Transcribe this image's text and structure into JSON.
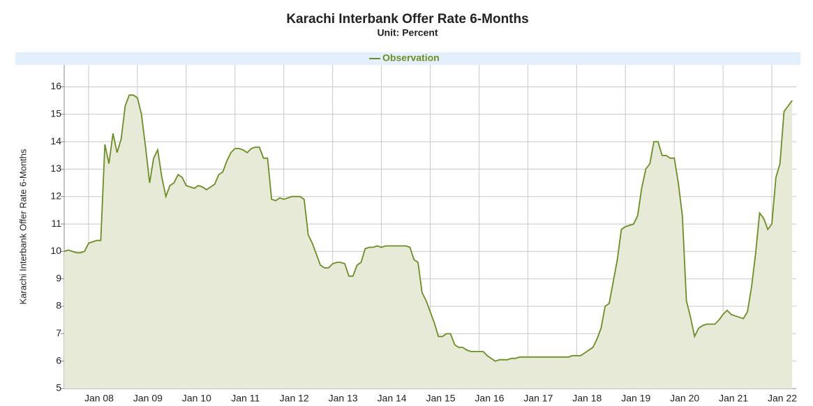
{
  "chart_data": {
    "type": "area",
    "title": "Karachi Interbank Offer Rate 6-Months",
    "subtitle": "Unit: Percent",
    "y_label": "Karachi Interbank Offer Rate 6-Months",
    "legend": "top",
    "grid": true,
    "ylim": [
      5,
      16.8
    ],
    "yticks": [
      5,
      6,
      7,
      8,
      9,
      10,
      11,
      12,
      13,
      14,
      15,
      16
    ],
    "xlim": [
      "2007-07",
      "2022-07"
    ],
    "xticks": [
      {
        "value": "2008-01",
        "label": "Jan 08"
      },
      {
        "value": "2009-01",
        "label": "Jan 09"
      },
      {
        "value": "2010-01",
        "label": "Jan 10"
      },
      {
        "value": "2011-01",
        "label": "Jan 11"
      },
      {
        "value": "2012-01",
        "label": "Jan 12"
      },
      {
        "value": "2013-01",
        "label": "Jan 13"
      },
      {
        "value": "2014-01",
        "label": "Jan 14"
      },
      {
        "value": "2015-01",
        "label": "Jan 15"
      },
      {
        "value": "2016-01",
        "label": "Jan 16"
      },
      {
        "value": "2017-01",
        "label": "Jan 17"
      },
      {
        "value": "2018-01",
        "label": "Jan 18"
      },
      {
        "value": "2019-01",
        "label": "Jan 19"
      },
      {
        "value": "2020-01",
        "label": "Jan 20"
      },
      {
        "value": "2021-01",
        "label": "Jan 21"
      },
      {
        "value": "2022-01",
        "label": "Jan 22"
      }
    ],
    "x": [
      "2007-07",
      "2007-08",
      "2007-09",
      "2007-10",
      "2007-11",
      "2007-12",
      "2008-01",
      "2008-02",
      "2008-03",
      "2008-04",
      "2008-05",
      "2008-06",
      "2008-07",
      "2008-08",
      "2008-09",
      "2008-10",
      "2008-11",
      "2008-12",
      "2009-01",
      "2009-02",
      "2009-03",
      "2009-04",
      "2009-05",
      "2009-06",
      "2009-07",
      "2009-08",
      "2009-09",
      "2009-10",
      "2009-11",
      "2009-12",
      "2010-01",
      "2010-02",
      "2010-03",
      "2010-04",
      "2010-05",
      "2010-06",
      "2010-07",
      "2010-08",
      "2010-09",
      "2010-10",
      "2010-11",
      "2010-12",
      "2011-01",
      "2011-02",
      "2011-03",
      "2011-04",
      "2011-05",
      "2011-06",
      "2011-07",
      "2011-08",
      "2011-09",
      "2011-10",
      "2011-11",
      "2011-12",
      "2012-01",
      "2012-02",
      "2012-03",
      "2012-04",
      "2012-05",
      "2012-06",
      "2012-07",
      "2012-08",
      "2012-09",
      "2012-10",
      "2012-11",
      "2012-12",
      "2013-01",
      "2013-02",
      "2013-03",
      "2013-04",
      "2013-05",
      "2013-06",
      "2013-07",
      "2013-08",
      "2013-09",
      "2013-10",
      "2013-11",
      "2013-12",
      "2014-01",
      "2014-02",
      "2014-03",
      "2014-04",
      "2014-05",
      "2014-06",
      "2014-07",
      "2014-08",
      "2014-09",
      "2014-10",
      "2014-11",
      "2014-12",
      "2015-01",
      "2015-02",
      "2015-03",
      "2015-04",
      "2015-05",
      "2015-06",
      "2015-07",
      "2015-08",
      "2015-09",
      "2015-10",
      "2015-11",
      "2015-12",
      "2016-01",
      "2016-02",
      "2016-03",
      "2016-04",
      "2016-05",
      "2016-06",
      "2016-07",
      "2016-08",
      "2016-09",
      "2016-10",
      "2016-11",
      "2016-12",
      "2017-01",
      "2017-02",
      "2017-03",
      "2017-04",
      "2017-05",
      "2017-06",
      "2017-07",
      "2017-08",
      "2017-09",
      "2017-10",
      "2017-11",
      "2017-12",
      "2018-01",
      "2018-02",
      "2018-03",
      "2018-04",
      "2018-05",
      "2018-06",
      "2018-07",
      "2018-08",
      "2018-09",
      "2018-10",
      "2018-11",
      "2018-12",
      "2019-01",
      "2019-02",
      "2019-03",
      "2019-04",
      "2019-05",
      "2019-06",
      "2019-07",
      "2019-08",
      "2019-09",
      "2019-10",
      "2019-11",
      "2019-12",
      "2020-01",
      "2020-02",
      "2020-03",
      "2020-04",
      "2020-05",
      "2020-06",
      "2020-07",
      "2020-08",
      "2020-09",
      "2020-10",
      "2020-11",
      "2020-12",
      "2021-01",
      "2021-02",
      "2021-03",
      "2021-04",
      "2021-05",
      "2021-06",
      "2021-07",
      "2021-08",
      "2021-09",
      "2021-10",
      "2021-11",
      "2021-12",
      "2022-01",
      "2022-02",
      "2022-03",
      "2022-04",
      "2022-05",
      "2022-06"
    ],
    "series": [
      {
        "name": "Observation",
        "color": "#6b8e23",
        "fill": "#e8ead8",
        "values": [
          10.0,
          10.05,
          10.0,
          9.95,
          9.95,
          10.0,
          10.3,
          10.35,
          10.4,
          10.4,
          13.9,
          13.2,
          14.3,
          13.6,
          14.1,
          15.3,
          15.7,
          15.7,
          15.6,
          15.0,
          13.8,
          12.5,
          13.4,
          13.7,
          12.7,
          12.0,
          12.4,
          12.5,
          12.8,
          12.7,
          12.4,
          12.35,
          12.3,
          12.4,
          12.35,
          12.25,
          12.35,
          12.45,
          12.8,
          12.9,
          13.3,
          13.6,
          13.75,
          13.75,
          13.7,
          13.6,
          13.75,
          13.8,
          13.8,
          13.4,
          13.4,
          11.9,
          11.85,
          11.95,
          11.9,
          11.95,
          12.0,
          12.0,
          12.0,
          11.9,
          10.6,
          10.3,
          9.9,
          9.5,
          9.4,
          9.4,
          9.55,
          9.6,
          9.6,
          9.55,
          9.1,
          9.1,
          9.5,
          9.6,
          10.1,
          10.15,
          10.15,
          10.2,
          10.15,
          10.2,
          10.2,
          10.2,
          10.2,
          10.2,
          10.2,
          10.15,
          9.7,
          9.6,
          8.5,
          8.2,
          7.8,
          7.4,
          6.9,
          6.9,
          7.0,
          7.0,
          6.6,
          6.5,
          6.5,
          6.4,
          6.35,
          6.35,
          6.35,
          6.35,
          6.2,
          6.1,
          6.0,
          6.05,
          6.05,
          6.05,
          6.1,
          6.1,
          6.15,
          6.15,
          6.15,
          6.15,
          6.15,
          6.15,
          6.15,
          6.15,
          6.15,
          6.15,
          6.15,
          6.15,
          6.15,
          6.2,
          6.2,
          6.2,
          6.3,
          6.4,
          6.5,
          6.8,
          7.2,
          8.0,
          8.1,
          8.9,
          9.7,
          10.8,
          10.9,
          10.95,
          11.0,
          11.3,
          12.3,
          13.0,
          13.2,
          14.0,
          14.0,
          13.5,
          13.5,
          13.4,
          13.4,
          12.5,
          11.3,
          8.2,
          7.6,
          6.9,
          7.2,
          7.3,
          7.35,
          7.35,
          7.35,
          7.5,
          7.7,
          7.85,
          7.7,
          7.65,
          7.6,
          7.55,
          7.8,
          8.7,
          9.9,
          11.4,
          11.2,
          10.8,
          11.0,
          12.7,
          13.2,
          15.1,
          15.3,
          15.5
        ]
      }
    ]
  }
}
